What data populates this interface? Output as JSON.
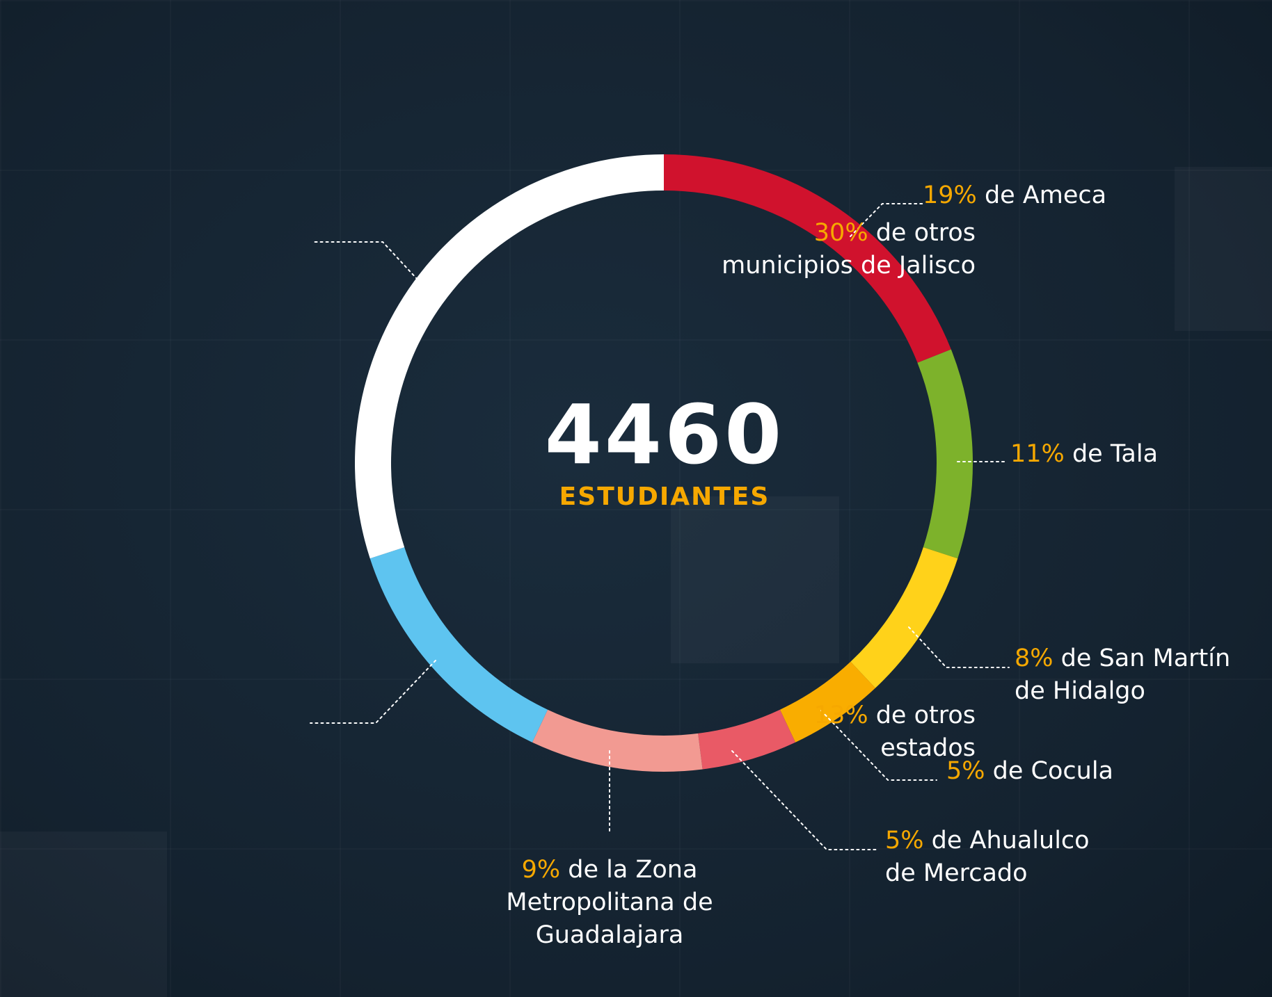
{
  "chart_data": {
    "type": "pie",
    "variant": "donut",
    "total_value": "4460",
    "total_caption": "ESTUDIANTES",
    "slices": [
      {
        "value": 19,
        "pct_text": "19%",
        "label": "de Ameca",
        "lines": [
          "de Ameca"
        ],
        "color": "#d0122d"
      },
      {
        "value": 11,
        "pct_text": "11%",
        "label": "de Tala",
        "lines": [
          "de Tala"
        ],
        "color": "#7db22b"
      },
      {
        "value": 8,
        "pct_text": "8%",
        "label": "de San Martín de Hidalgo",
        "lines": [
          "de San Martín",
          "de Hidalgo"
        ],
        "color": "#ffd21a"
      },
      {
        "value": 5,
        "pct_text": "5%",
        "label": "de Cocula",
        "lines": [
          "de Cocula"
        ],
        "color": "#f9ad00"
      },
      {
        "value": 5,
        "pct_text": "5%",
        "label": "de Ahualulco de Mercado",
        "lines": [
          "de Ahualulco",
          "de Mercado"
        ],
        "color": "#e95a66"
      },
      {
        "value": 9,
        "pct_text": "9%",
        "label": "de la Zona Metropolitana de Guadalajara",
        "lines": [
          "de la Zona",
          "Metropolitana de",
          "Guadalajara"
        ],
        "color": "#f29a92"
      },
      {
        "value": 13,
        "pct_text": "13%",
        "label": "de otros estados",
        "lines": [
          "de otros",
          "estados"
        ],
        "color": "#5ec4f0"
      },
      {
        "value": 30,
        "pct_text": "30%",
        "label": "de otros municipios de Jalisco",
        "lines": [
          "de otros",
          "municipios de Jalisco"
        ],
        "color": "#ffffff"
      }
    ],
    "colors": {
      "percent_text": "#f6a800",
      "label_text": "#ffffff",
      "leader_line": "#ffffff",
      "background": "#14222f"
    }
  }
}
